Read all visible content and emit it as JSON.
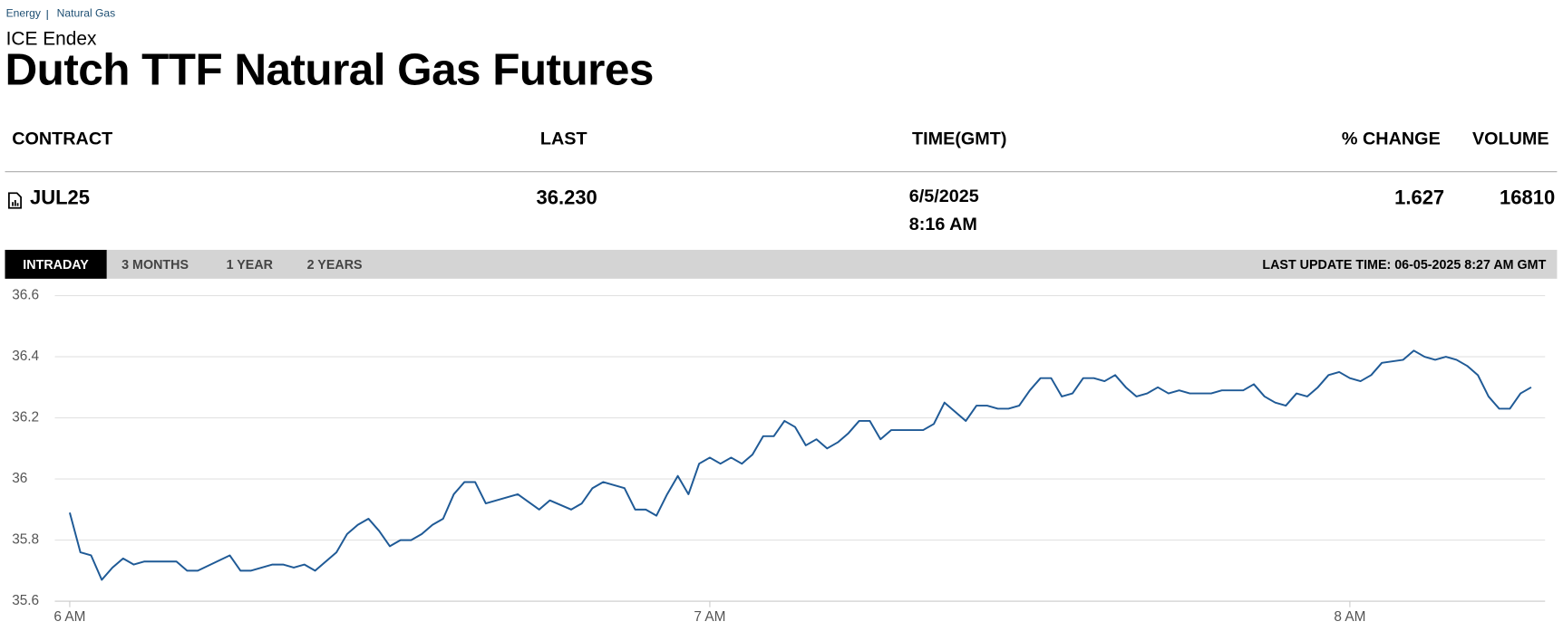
{
  "breadcrumb": [
    "Energy",
    "Natural Gas"
  ],
  "exchange": "ICE Endex",
  "title": "Dutch TTF Natural Gas Futures",
  "table": {
    "headers": [
      "CONTRACT",
      "LAST",
      "TIME(GMT)",
      "% CHANGE",
      "VOLUME"
    ],
    "row": {
      "contract": "JUL25",
      "last": "36.230",
      "date": "6/5/2025",
      "time": "8:16 AM",
      "change": "1.627",
      "volume": "16810"
    }
  },
  "tabs": [
    "INTRADAY",
    "3 MONTHS",
    "1 YEAR",
    "2 YEARS"
  ],
  "last_update": "LAST UPDATE TIME: 06-05-2025 8:27 AM GMT",
  "chart_data": {
    "type": "line",
    "color": "#1f5a96",
    "grid": true,
    "x": [
      360,
      361,
      362,
      363,
      364,
      365,
      366,
      367,
      370,
      371,
      372,
      375,
      376,
      377,
      379,
      380,
      381,
      382,
      383,
      385,
      386,
      387,
      388,
      389,
      390,
      391,
      392,
      393,
      394,
      395,
      396,
      397,
      398,
      399,
      402,
      404,
      405,
      407,
      408,
      409,
      410,
      411,
      412,
      413,
      414,
      415,
      416,
      417,
      418,
      419,
      420,
      421,
      422,
      423,
      424,
      425,
      426,
      427,
      428,
      429,
      430,
      431,
      432,
      433,
      434,
      435,
      436,
      437,
      439,
      440,
      441,
      442,
      444,
      445,
      446,
      447,
      448,
      449,
      450,
      451,
      452,
      453,
      454,
      455,
      456,
      457,
      458,
      459,
      460,
      461,
      462,
      463,
      464,
      465,
      466,
      467,
      468,
      470,
      471,
      472,
      473,
      474,
      475,
      476,
      477,
      478,
      479,
      480,
      481,
      482,
      483,
      485,
      486,
      487,
      488,
      489,
      490,
      491,
      492,
      493,
      494,
      495,
      496,
      497
    ],
    "values": [
      35.89,
      35.76,
      35.75,
      35.67,
      35.71,
      35.74,
      35.72,
      35.73,
      35.73,
      35.7,
      35.7,
      35.75,
      35.7,
      35.7,
      35.72,
      35.72,
      35.71,
      35.72,
      35.7,
      35.76,
      35.82,
      35.85,
      35.87,
      35.83,
      35.78,
      35.8,
      35.8,
      35.82,
      35.85,
      35.87,
      35.95,
      35.99,
      35.99,
      35.92,
      35.95,
      35.9,
      35.93,
      35.9,
      35.92,
      35.97,
      35.99,
      35.98,
      35.97,
      35.9,
      35.9,
      35.88,
      35.95,
      36.01,
      35.95,
      36.05,
      36.07,
      36.05,
      36.07,
      36.05,
      36.08,
      36.14,
      36.14,
      36.19,
      36.17,
      36.11,
      36.13,
      36.1,
      36.12,
      36.15,
      36.19,
      36.19,
      36.13,
      36.16,
      36.16,
      36.16,
      36.18,
      36.25,
      36.19,
      36.24,
      36.24,
      36.23,
      36.23,
      36.24,
      36.29,
      36.33,
      36.33,
      36.27,
      36.28,
      36.33,
      36.33,
      36.32,
      36.34,
      36.3,
      36.27,
      36.28,
      36.3,
      36.28,
      36.29,
      36.28,
      36.28,
      36.28,
      36.29,
      36.29,
      36.31,
      36.27,
      36.25,
      36.24,
      36.28,
      36.27,
      36.3,
      36.34,
      36.35,
      36.33,
      36.32,
      36.34,
      36.38,
      36.39,
      36.42,
      36.4,
      36.39,
      36.4,
      36.39,
      36.37,
      36.34,
      36.27,
      36.23,
      36.23,
      36.28,
      36.3
    ],
    "xlim": [
      358.6,
      498.3
    ],
    "xticks": [
      {
        "value": 360,
        "label": "6 AM"
      },
      {
        "value": 420,
        "label": "7 AM"
      },
      {
        "value": 480,
        "label": "8 AM"
      }
    ],
    "ylim": [
      35.6,
      36.6
    ],
    "yticks": [
      35.6,
      35.8,
      36,
      36.2,
      36.4,
      36.6
    ]
  }
}
